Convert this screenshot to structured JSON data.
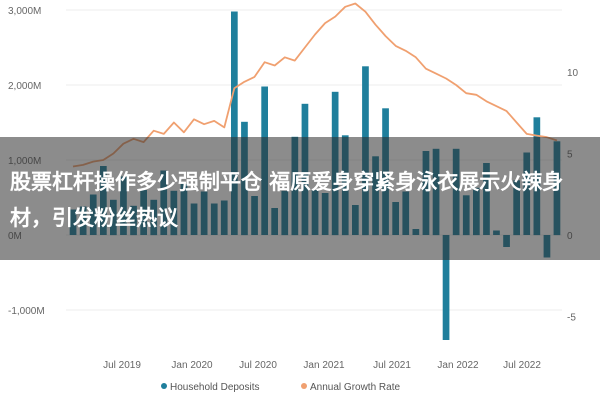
{
  "headline": "股票杠杆操作多少强制平仓 福原爱身穿紧身泳衣展示火辣身材，引发粉丝热议",
  "chart_data": {
    "type": "bar+line",
    "y_left": {
      "ticks": [
        -1000,
        0,
        1000,
        2000,
        3000
      ],
      "tick_labels": [
        "-1,000M",
        "0M",
        "1,000M",
        "2,000M",
        "3,000M"
      ],
      "range": [
        -1450,
        3100
      ]
    },
    "y_right": {
      "ticks": [
        -5,
        0,
        5,
        10
      ],
      "tick_labels": [
        "-5",
        "0",
        "5",
        "10"
      ]
    },
    "x_labels": [
      "Jul 2019",
      "Jan 2020",
      "Jul 2020",
      "Jan 2021",
      "Jul 2021",
      "Jan 2022",
      "Jul 2022"
    ],
    "legend": [
      {
        "label": "Household Deposits",
        "color": "#1f7f9c"
      },
      {
        "label": "Annual Growth Rate",
        "color": "#f0a070"
      }
    ],
    "series": [
      {
        "name": "Household Deposits",
        "type": "bar",
        "color": "#1f7f9c",
        "values": [
          340,
          380,
          540,
          920,
          470,
          780,
          390,
          600,
          470,
          860,
          590,
          680,
          420,
          580,
          420,
          460,
          2980,
          1510,
          520,
          1980,
          360,
          590,
          1310,
          1750,
          600,
          560,
          1910,
          1330,
          400,
          2250,
          1050,
          1690,
          440,
          580,
          80,
          1120,
          1150,
          -1400,
          1150,
          530,
          630,
          960,
          60,
          -160,
          730,
          1100,
          1570,
          -300,
          1250
        ]
      },
      {
        "name": "Annual Growth Rate",
        "type": "line",
        "color": "#f0a070",
        "values": [
          4.2,
          4.3,
          4.5,
          4.6,
          5.0,
          5.6,
          5.9,
          5.7,
          6.4,
          6.2,
          6.9,
          6.3,
          7.1,
          6.8,
          7.0,
          6.6,
          9.0,
          9.4,
          9.7,
          10.6,
          10.4,
          10.9,
          10.7,
          11.5,
          12.3,
          13.0,
          13.4,
          14.0,
          14.2,
          13.7,
          12.9,
          12.2,
          11.6,
          11.3,
          10.9,
          10.2,
          9.9,
          9.6,
          9.2,
          8.7,
          8.6,
          8.2,
          7.9,
          7.6,
          6.9,
          6.2,
          6.1,
          6.0,
          5.8
        ]
      }
    ]
  }
}
